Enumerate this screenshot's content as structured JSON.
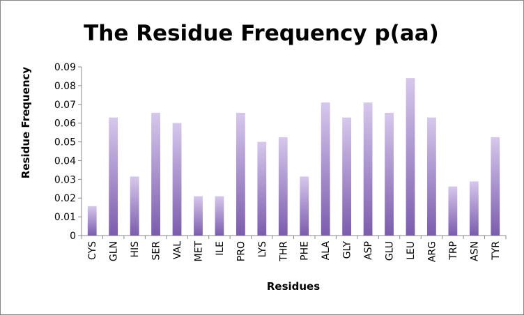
{
  "chart_data": {
    "type": "bar",
    "title": "The Residue Frequency p(aa)",
    "xlabel": "Residues",
    "ylabel": "Residue Frequency",
    "categories": [
      "CYS",
      "GLN",
      "HIS",
      "SER",
      "VAL",
      "MET",
      "ILE",
      "PRO",
      "LYS",
      "THR",
      "PHE",
      "ALA",
      "GLY",
      "ASP",
      "GLU",
      "LEU",
      "ARG",
      "TRP",
      "ASN",
      "TYR"
    ],
    "values": [
      0.0157,
      0.063,
      0.0315,
      0.0655,
      0.0601,
      0.021,
      0.021,
      0.0655,
      0.05,
      0.0525,
      0.0315,
      0.071,
      0.063,
      0.071,
      0.0655,
      0.084,
      0.063,
      0.0262,
      0.0289,
      0.0525
    ],
    "ylim": [
      0,
      0.09
    ],
    "yticks": [
      "0",
      "0.01",
      "0.02",
      "0.03",
      "0.04",
      "0.05",
      "0.06",
      "0.07",
      "0.08",
      "0.09"
    ],
    "grid": false,
    "legend": "none",
    "bar_color_top": "#d6c8ec",
    "bar_color_bottom": "#7b5cad"
  }
}
